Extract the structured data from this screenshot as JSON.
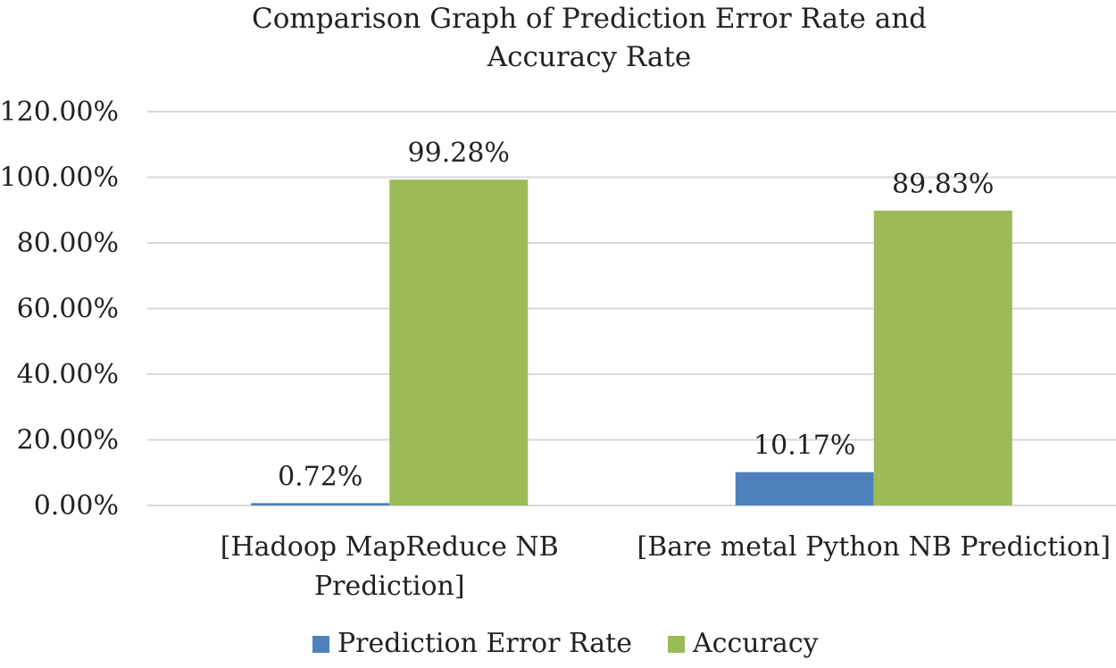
{
  "chart_data": {
    "type": "bar",
    "title": [
      "Comparison Graph of Prediction Error Rate and",
      "Accuracy Rate"
    ],
    "categories": [
      [
        "[Hadoop MapReduce NB",
        "Prediction]"
      ],
      [
        "[Bare metal Python NB Prediction]"
      ]
    ],
    "series": [
      {
        "name": "Prediction Error Rate",
        "color": "#4f81bd",
        "values": [
          0.72,
          10.17
        ],
        "labels": [
          "0.72%",
          "10.17%"
        ]
      },
      {
        "name": "Accuracy",
        "color": "#9bbb59",
        "values": [
          99.28,
          89.83
        ],
        "labels": [
          "99.28%",
          "89.83%"
        ]
      }
    ],
    "ylim": [
      0,
      120
    ],
    "yticks": [
      0,
      20,
      40,
      60,
      80,
      100,
      120
    ],
    "ytick_labels": [
      "0.00%",
      "20.00%",
      "40.00%",
      "60.00%",
      "80.00%",
      "100.00%",
      "120.00%"
    ],
    "grid": true,
    "gridline_color": "#d9d9d9",
    "legend_position": "bottom",
    "xlabel": "",
    "ylabel": ""
  }
}
